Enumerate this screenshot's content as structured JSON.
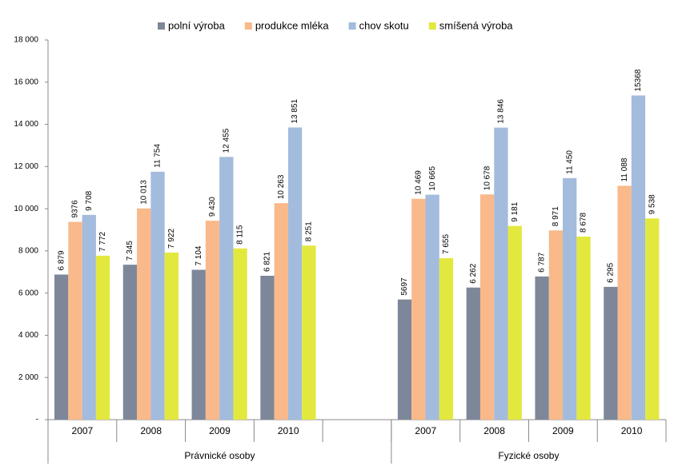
{
  "chart_data": {
    "type": "bar",
    "categories": [
      "2007",
      "2008",
      "2009",
      "2010",
      null,
      "2007",
      "2008",
      "2009",
      "2010"
    ],
    "groups": [
      {
        "name": "Právnické osoby",
        "size": 5
      },
      {
        "name": "Fyzické osoby",
        "size": 4
      }
    ],
    "series": [
      {
        "name": "polní výroba",
        "color": "#7d8799",
        "values": [
          6879,
          7345,
          7104,
          6821,
          null,
          5697,
          6262,
          6787,
          6295
        ],
        "value_labels": [
          "6 879",
          "7 345",
          "7 104",
          "6 821",
          null,
          null,
          "6 262",
          "6 787",
          "6 295"
        ]
      },
      {
        "name": "produkce mléka",
        "color": "#f9b98a",
        "values": [
          9376,
          10013,
          9430,
          10263,
          null,
          10469,
          10678,
          8971,
          11088
        ],
        "value_labels": [
          null,
          "10 013",
          "9 430",
          "10 263",
          null,
          "10 469",
          "10 678",
          "8 971",
          "11 088"
        ]
      },
      {
        "name": "chov skotu",
        "color": "#a3bbdc",
        "values": [
          9708,
          11754,
          12455,
          13851,
          null,
          10665,
          13846,
          11450,
          15368
        ],
        "value_labels": [
          "9 708",
          "11 754",
          "12 455",
          "13 851",
          null,
          "10 665",
          "13 846",
          "11 450",
          null
        ]
      },
      {
        "name": "smíšená výroba",
        "color": "#e3e83e",
        "values": [
          7772,
          7922,
          8115,
          8251,
          null,
          7655,
          9181,
          8678,
          9538
        ],
        "value_labels": [
          "7 772",
          "7 922",
          "8 115",
          "8 251",
          null,
          "7 655",
          "9 181",
          "8 678",
          "9 538"
        ]
      }
    ],
    "ylim": [
      0,
      18000
    ],
    "yticks": [
      {
        "value": 0,
        "label": "-"
      },
      {
        "value": 2000,
        "label": "2 000"
      },
      {
        "value": 4000,
        "label": "4 000"
      },
      {
        "value": 6000,
        "label": "6 000"
      },
      {
        "value": 8000,
        "label": "8 000"
      },
      {
        "value": 10000,
        "label": "10 000"
      },
      {
        "value": 12000,
        "label": "12 000"
      },
      {
        "value": 14000,
        "label": "14 000"
      },
      {
        "value": 16000,
        "label": "16 000"
      },
      {
        "value": 18000,
        "label": "18 000"
      }
    ],
    "grid": false,
    "legend": "top"
  }
}
